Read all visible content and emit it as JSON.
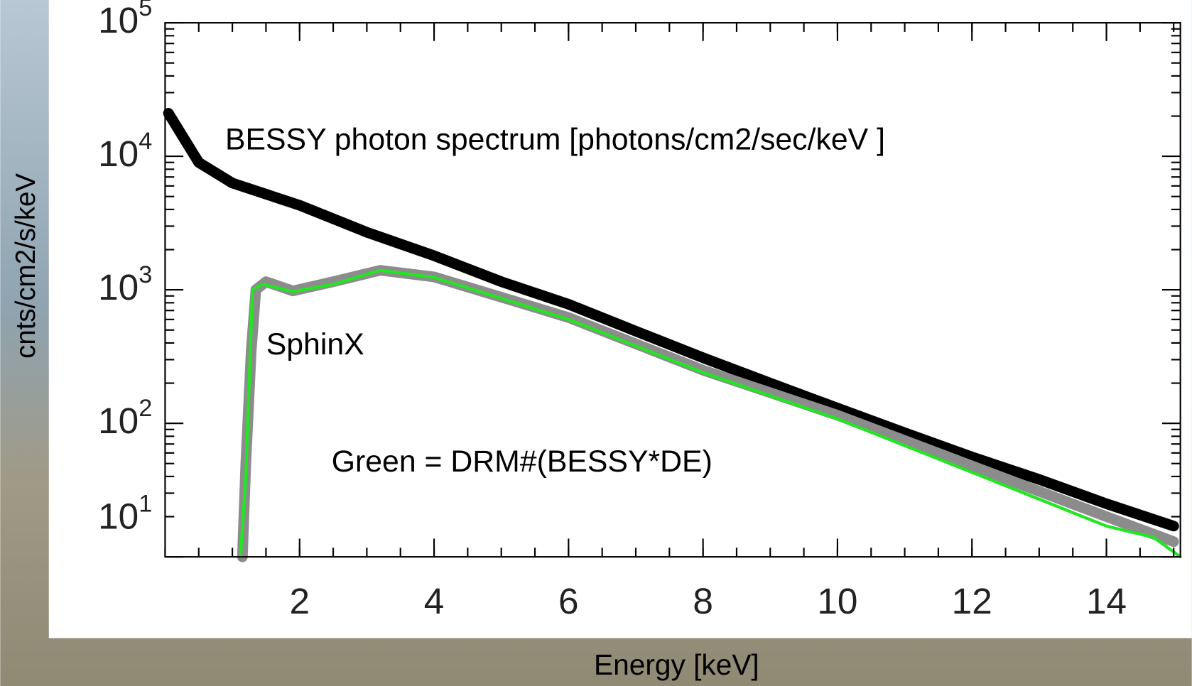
{
  "chart_data": {
    "type": "line",
    "log_y": true,
    "xlabel": "Energy [keV]",
    "ylabel": "cnts/cm2/s/keV",
    "annotations": [
      "BESSY photon spectrum   [photons/cm2/sec/keV ]",
      "SphinX",
      "Green = DRM#(BESSY*DE)"
    ],
    "xlim": [
      0,
      15.1
    ],
    "xticks": [
      2,
      4,
      6,
      8,
      10,
      12,
      14
    ],
    "ylim": [
      10,
      100000
    ],
    "yticks": [
      {
        "value": 10,
        "label": "10^1"
      },
      {
        "value": 100,
        "label": "10^2"
      },
      {
        "value": 1000,
        "label": "10^3"
      },
      {
        "value": 10000,
        "label": "10^4"
      },
      {
        "value": 100000,
        "label": "10^5"
      }
    ],
    "series": [
      {
        "color": "#000000",
        "x": [
          0.05,
          0.5,
          1,
          2,
          3,
          4,
          5,
          6,
          7,
          8,
          9,
          10,
          11,
          12,
          13,
          14,
          15
        ],
        "values": [
          21000,
          9000,
          6300,
          4300,
          2700,
          1800,
          1150,
          780,
          490,
          310,
          200,
          130,
          85,
          56,
          38,
          25,
          17
        ]
      },
      {
        "color": "#8c8c8c",
        "x": [
          1.15,
          1.2,
          1.28,
          1.35,
          1.5,
          1.9,
          2.5,
          3.2,
          4,
          6,
          8,
          10,
          12,
          14,
          15
        ],
        "values": [
          10,
          50,
          350,
          1000,
          1150,
          980,
          1150,
          1400,
          1250,
          620,
          250,
          115,
          48,
          20,
          13
        ]
      },
      {
        "color": "#22e622",
        "x": [
          1.12,
          1.2,
          1.3,
          1.45,
          1.9,
          2.5,
          3.2,
          4,
          6,
          8,
          10,
          12,
          14,
          14.7,
          15.1
        ],
        "values": [
          10,
          40,
          1000,
          1100,
          970,
          1100,
          1400,
          1240,
          600,
          240,
          108,
          43,
          17,
          14,
          10
        ]
      }
    ]
  }
}
